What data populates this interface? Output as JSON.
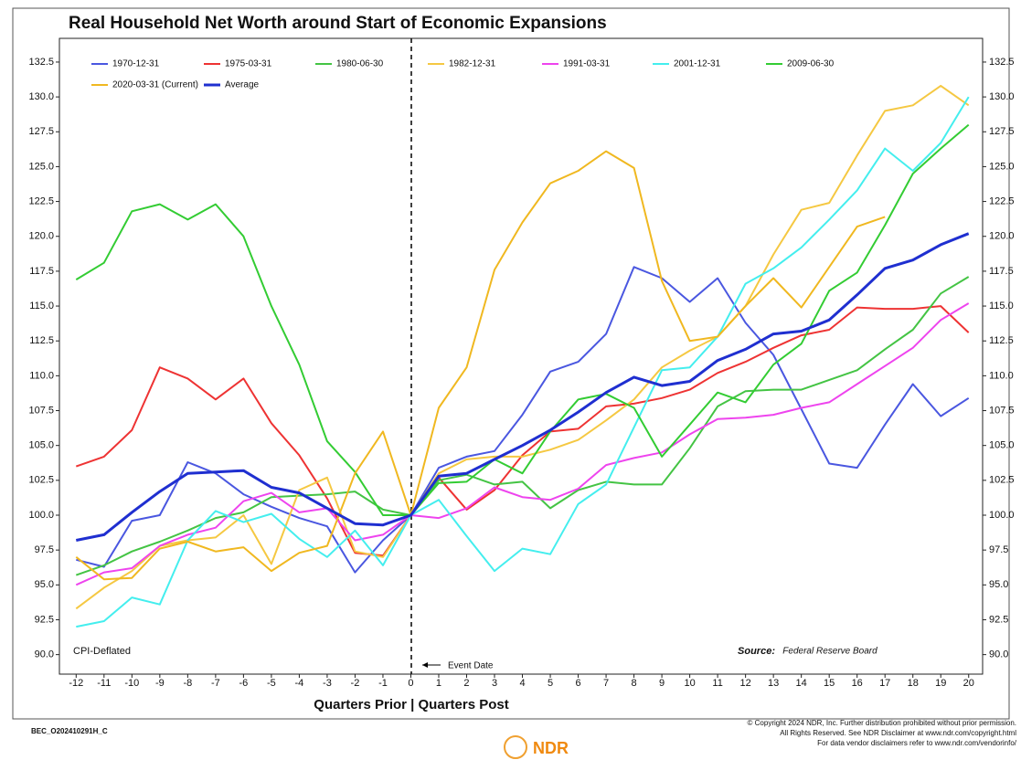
{
  "chart_data": {
    "type": "line",
    "title": "Real Household Net Worth around Start of Economic Expansions",
    "xlabel": "Quarters Prior | Quarters Post",
    "annotations": {
      "deflator": "CPI-Deflated",
      "source_label": "Source:",
      "source": "Federal Reserve Board",
      "event": "Event Date"
    },
    "footer": {
      "code": "BEC_O202410291H_C",
      "logo": "NDR",
      "copyright": [
        "© Copyright 2024 NDR, Inc. Further distribution prohibited without prior permission.",
        "All Rights Reserved. See NDR Disclaimer at www.ndr.com/copyright.html",
        "For data vendor disclaimers refer to www.ndr.com/vendorinfo/"
      ]
    },
    "x": [
      -12,
      -11,
      -10,
      -9,
      -8,
      -7,
      -6,
      -5,
      -4,
      -3,
      -2,
      -1,
      0,
      1,
      2,
      3,
      4,
      5,
      6,
      7,
      8,
      9,
      10,
      11,
      12,
      13,
      14,
      15,
      16,
      17,
      18,
      19,
      20
    ],
    "xlim": [
      -12.6,
      20.5
    ],
    "xticks": [
      -12,
      -11,
      -10,
      -9,
      -8,
      -7,
      -6,
      -5,
      -4,
      -3,
      -2,
      -1,
      0,
      1,
      2,
      3,
      4,
      5,
      6,
      7,
      8,
      9,
      10,
      11,
      12,
      13,
      14,
      15,
      16,
      17,
      18,
      19,
      20
    ],
    "ylim": [
      88.6,
      134.2
    ],
    "yticks": [
      {
        "value": 90,
        "label": "90.0"
      },
      92.5,
      {
        "value": 95,
        "label": "95.0"
      },
      97.5,
      {
        "value": 100,
        "label": "100.0"
      },
      102.5,
      {
        "value": 105,
        "label": "105.0"
      },
      107.5,
      {
        "value": 110,
        "label": "110.0"
      },
      112.5,
      {
        "value": 115,
        "label": "115.0"
      },
      117.5,
      {
        "value": 120,
        "label": "120.0"
      },
      122.5,
      {
        "value": 125,
        "label": "125.0"
      },
      127.5,
      {
        "value": 130,
        "label": "130.0"
      },
      132.5
    ],
    "grid": false,
    "legend": "upper left",
    "series": [
      {
        "name": "1970-12-31",
        "color": "#4a57e0",
        "values": [
          96.8,
          96.3,
          99.6,
          100.0,
          103.8,
          103.0,
          101.5,
          100.6,
          99.8,
          99.2,
          95.9,
          98.2,
          100,
          103.4,
          104.2,
          104.6,
          107.2,
          110.3,
          111.0,
          113.0,
          117.8,
          117.0,
          115.3,
          117.0,
          113.8,
          111.5,
          107.6,
          103.7,
          103.4,
          106.5,
          109.4,
          107.1,
          108.4
        ]
      },
      {
        "name": "1975-03-31",
        "color": "#ee3333",
        "values": [
          103.5,
          104.2,
          106.1,
          110.6,
          109.8,
          108.3,
          109.8,
          106.6,
          104.3,
          101.2,
          97.3,
          97.1,
          100,
          102.7,
          100.4,
          101.8,
          104.3,
          106.0,
          106.2,
          107.8,
          108.0,
          108.4,
          109.0,
          110.2,
          111.0,
          112.0,
          112.9,
          113.3,
          114.9,
          114.8,
          114.8,
          115.0,
          113.1
        ]
      },
      {
        "name": "1980-06-30",
        "color": "#44c444",
        "values": [
          95.7,
          96.4,
          97.4,
          98.1,
          98.9,
          99.8,
          100.2,
          101.3,
          101.4,
          101.5,
          101.7,
          100.4,
          100,
          102.5,
          102.9,
          102.2,
          102.4,
          100.5,
          101.8,
          102.4,
          102.2,
          102.2,
          104.8,
          107.8,
          108.9,
          109.0,
          109.0,
          109.7,
          110.4,
          111.9,
          113.3,
          115.9,
          117.1
        ]
      },
      {
        "name": "1982-12-31",
        "color": "#f5c842",
        "values": [
          93.3,
          94.8,
          96.0,
          97.8,
          98.2,
          98.4,
          100.0,
          96.5,
          101.8,
          102.7,
          97.4,
          97.0,
          100,
          103.0,
          104.0,
          104.2,
          104.2,
          104.7,
          105.4,
          106.8,
          108.3,
          110.6,
          111.8,
          112.8,
          115.0,
          118.7,
          121.9,
          122.4,
          125.8,
          129.0,
          129.4,
          130.8,
          129.4
        ]
      },
      {
        "name": "1991-03-31",
        "color": "#ee44ee",
        "values": [
          95.0,
          95.9,
          96.2,
          97.8,
          98.6,
          99.1,
          101.0,
          101.6,
          100.2,
          100.5,
          98.2,
          98.6,
          100,
          99.8,
          100.5,
          102.0,
          101.3,
          101.1,
          101.9,
          103.6,
          104.1,
          104.5,
          105.8,
          106.9,
          107.0,
          107.2,
          107.7,
          108.1,
          109.4,
          110.7,
          112.0,
          114.0,
          115.2
        ]
      },
      {
        "name": "2001-12-31",
        "color": "#44eeee",
        "values": [
          92.0,
          92.4,
          94.1,
          93.6,
          98.2,
          100.3,
          99.5,
          100.1,
          98.3,
          97.0,
          98.9,
          96.4,
          100,
          101.1,
          98.5,
          96.0,
          97.6,
          97.2,
          100.8,
          102.2,
          106.3,
          110.4,
          110.6,
          112.8,
          116.6,
          117.7,
          119.2,
          121.2,
          123.3,
          126.3,
          124.7,
          126.7,
          130.0
        ]
      },
      {
        "name": "2009-06-30",
        "color": "#33cc33",
        "values": [
          116.9,
          118.1,
          121.8,
          122.3,
          121.2,
          122.3,
          120.0,
          115.0,
          110.8,
          105.3,
          103.1,
          100.0,
          100,
          102.3,
          102.4,
          104.0,
          103.0,
          106.0,
          108.3,
          108.7,
          107.7,
          104.2,
          106.5,
          108.8,
          108.1,
          110.8,
          112.3,
          116.1,
          117.4,
          120.8,
          124.5,
          126.3,
          128.0
        ]
      },
      {
        "name": "2020-03-31 (Current)",
        "color": "#f0b820",
        "values": [
          97.0,
          95.4,
          95.5,
          97.6,
          98.1,
          97.4,
          97.7,
          96.0,
          97.3,
          97.8,
          103.0,
          106.0,
          100,
          107.7,
          110.6,
          117.6,
          121.0,
          123.8,
          124.7,
          126.1,
          124.9,
          116.8,
          112.5,
          112.8,
          115.0,
          117.0,
          114.9,
          117.8,
          120.7,
          121.4,
          null,
          null,
          null
        ]
      },
      {
        "name": "Average",
        "color": "#1f2fd0",
        "values": [
          98.2,
          98.6,
          100.2,
          101.7,
          103.0,
          103.1,
          103.2,
          102.0,
          101.6,
          100.5,
          99.4,
          99.3,
          100,
          102.8,
          103.0,
          104.0,
          105.0,
          106.1,
          107.4,
          108.8,
          109.9,
          109.3,
          109.6,
          111.1,
          111.9,
          113.0,
          113.2,
          114.0,
          115.8,
          117.7,
          118.3,
          119.4,
          120.2
        ]
      }
    ]
  }
}
